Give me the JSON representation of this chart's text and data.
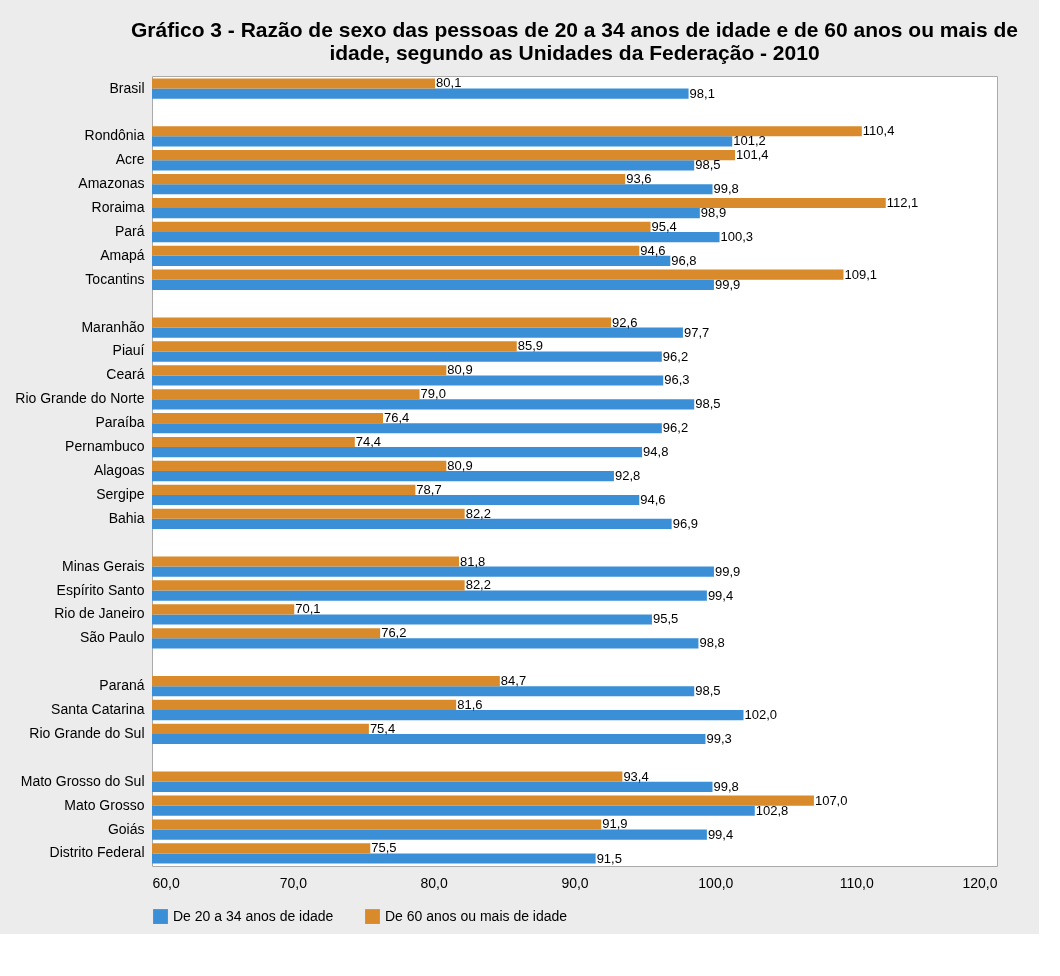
{
  "chart_data": {
    "type": "bar",
    "orientation": "horizontal",
    "title": "Gráfico 3 - Razão de sexo das pessoas de 20 a 34 anos de idade e de 60 anos ou mais de idade, segundo as Unidades da Federação - 2010",
    "categories": [
      "Brasil",
      null,
      "Rondônia",
      "Acre",
      "Amazonas",
      "Roraima",
      "Pará",
      "Amapá",
      "Tocantins",
      null,
      "Maranhão",
      "Piauí",
      "Ceará",
      "Rio Grande do Norte",
      "Paraíba",
      "Pernambuco",
      "Alagoas",
      "Sergipe",
      "Bahia",
      null,
      "Minas Gerais",
      "Espírito Santo",
      "Rio de Janeiro",
      "São Paulo",
      null,
      "Paraná",
      "Santa Catarina",
      "Rio Grande do Sul",
      null,
      "Mato Grosso do Sul",
      "Mato Grosso",
      "Goiás",
      "Distrito Federal"
    ],
    "series": [
      {
        "name": "De 20 a 34 anos de idade",
        "color": "#3a8fd6",
        "values": [
          98.1,
          null,
          101.2,
          98.5,
          99.8,
          98.9,
          100.3,
          96.8,
          99.9,
          null,
          97.7,
          96.2,
          96.3,
          98.5,
          96.2,
          94.8,
          92.8,
          94.6,
          96.9,
          null,
          99.9,
          99.4,
          95.5,
          98.8,
          null,
          98.5,
          102.0,
          99.3,
          null,
          99.8,
          102.8,
          99.4,
          91.5
        ],
        "value_labels": [
          "98,1",
          null,
          "101,2",
          "98,5",
          "99,8",
          "98,9",
          "100,3",
          "96,8",
          "99,9",
          null,
          "97,7",
          "96,2",
          "96,3",
          "98,5",
          "96,2",
          "94,8",
          "92,8",
          "94,6",
          "96,9",
          null,
          "99,9",
          "99,4",
          "95,5",
          "98,8",
          null,
          "98,5",
          "102,0",
          "99,3",
          null,
          "99,8",
          "102,8",
          "99,4",
          "91,5"
        ]
      },
      {
        "name": "De 60 anos ou mais de idade",
        "color": "#d98a2a",
        "values": [
          80.1,
          null,
          110.4,
          101.4,
          93.6,
          112.1,
          95.4,
          94.6,
          109.1,
          null,
          92.6,
          85.9,
          80.9,
          79.0,
          76.4,
          74.4,
          80.9,
          78.7,
          82.2,
          null,
          81.8,
          82.2,
          70.1,
          76.2,
          null,
          84.7,
          81.6,
          75.4,
          null,
          93.4,
          107.0,
          91.9,
          75.5
        ],
        "value_labels": [
          "80,1",
          null,
          "110,4",
          "101,4",
          "93,6",
          "112,1",
          "95,4",
          "94,6",
          "109,1",
          null,
          "92,6",
          "85,9",
          "80,9",
          "79,0",
          "76,4",
          "74,4",
          "80,9",
          "78,7",
          "82,2",
          null,
          "81,8",
          "82,2",
          "70,1",
          "76,2",
          null,
          "84,7",
          "81,6",
          "75,4",
          null,
          "93,4",
          "107,0",
          "91,9",
          "75,5"
        ]
      }
    ],
    "xlim": [
      60,
      120
    ],
    "xticks": [
      {
        "value": 60,
        "label": "60,0"
      },
      {
        "value": 70,
        "label": "70,0"
      },
      {
        "value": 80,
        "label": "80,0"
      },
      {
        "value": 90,
        "label": "90,0"
      },
      {
        "value": 100,
        "label": "100,0"
      },
      {
        "value": 110,
        "label": "110,0"
      },
      {
        "value": 120,
        "label": "120,0"
      }
    ],
    "grid": false,
    "legend": "bottom"
  }
}
